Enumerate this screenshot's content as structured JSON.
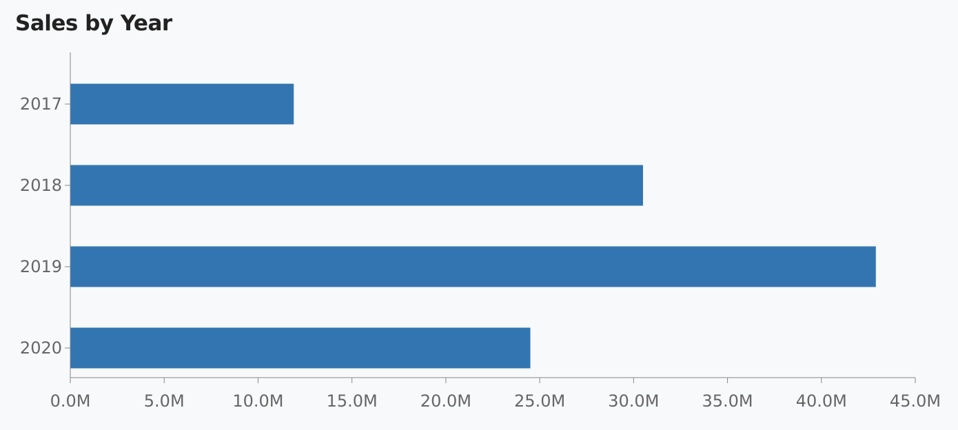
{
  "chart_data": {
    "type": "bar",
    "orientation": "horizontal",
    "title": "Sales by Year",
    "categories": [
      "2017",
      "2018",
      "2019",
      "2020"
    ],
    "values": [
      11.9,
      30.5,
      42.9,
      24.5
    ],
    "unit": "M",
    "xlim": [
      0,
      45
    ],
    "xticks": [
      0,
      5,
      10,
      15,
      20,
      25,
      30,
      35,
      40,
      45
    ],
    "xtick_labels": [
      "0.0M",
      "5.0M",
      "10.0M",
      "15.0M",
      "20.0M",
      "25.0M",
      "30.0M",
      "35.0M",
      "40.0M",
      "45.0M"
    ],
    "xlabel": "",
    "ylabel": "",
    "grid": false,
    "bar_color": "#3375b0"
  }
}
